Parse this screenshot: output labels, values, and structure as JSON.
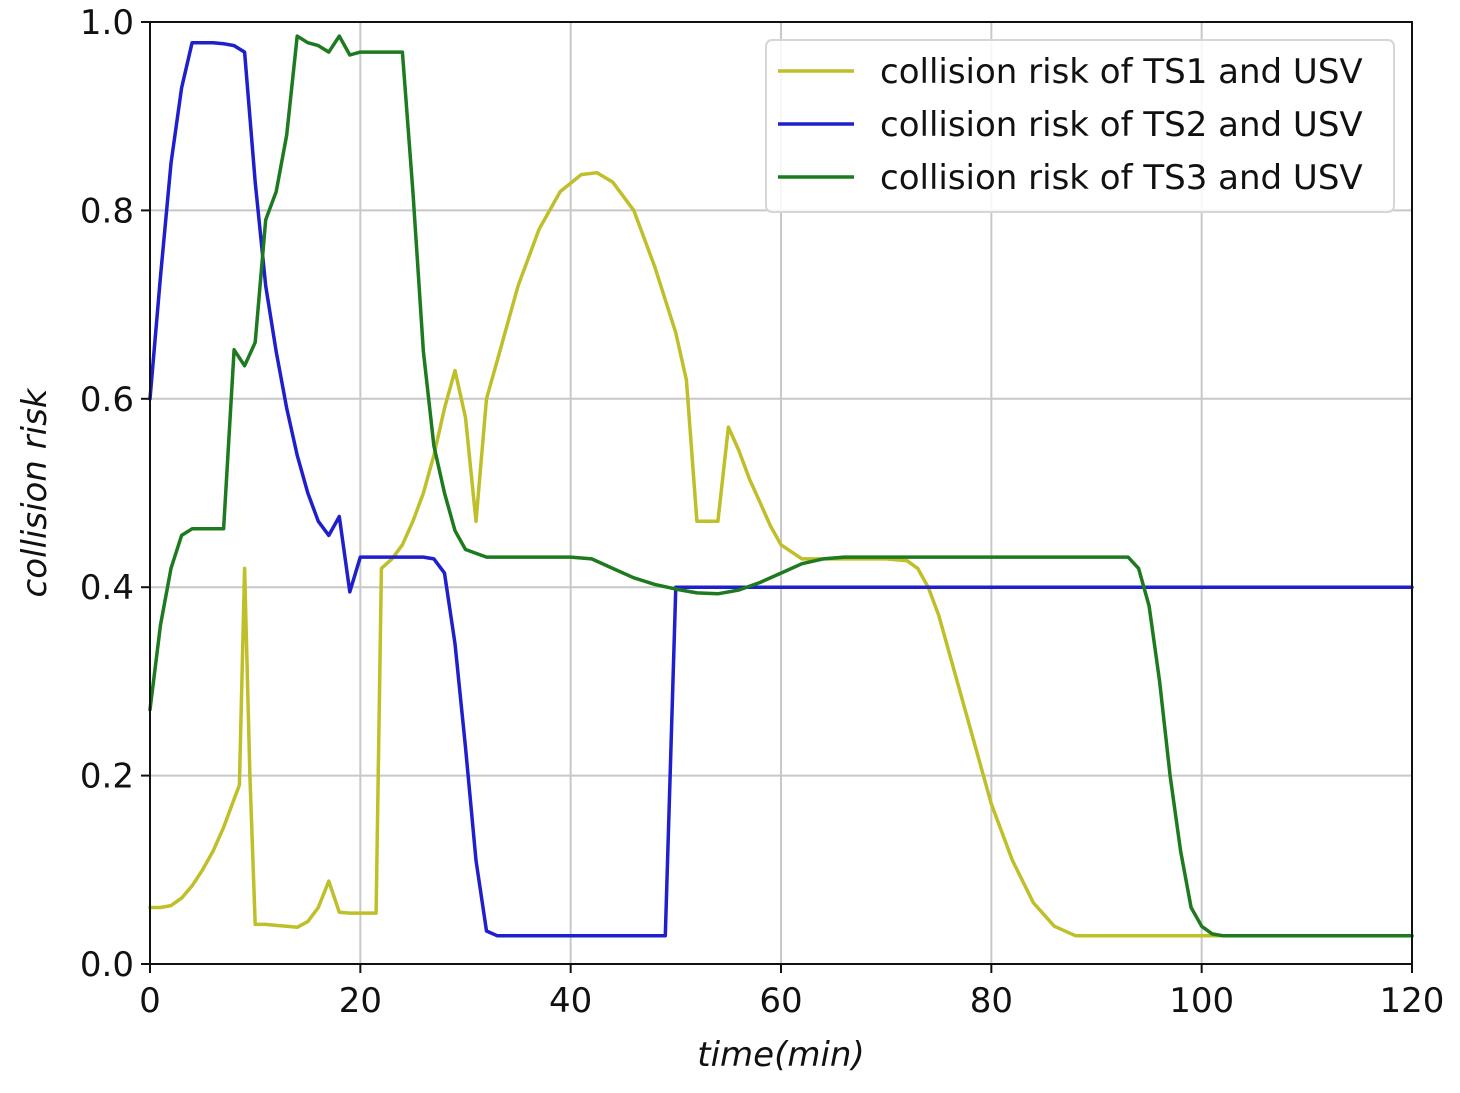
{
  "chart_data": {
    "type": "line",
    "title": "",
    "xlabel": "time(min)",
    "ylabel": "collision risk",
    "xlim": [
      0,
      120
    ],
    "ylim": [
      0,
      1.0
    ],
    "grid": true,
    "legend_position": "top-right",
    "x_ticks": [
      0,
      20,
      40,
      60,
      80,
      100,
      120
    ],
    "x_tick_labels": [
      "0",
      "20",
      "40",
      "60",
      "80",
      "100",
      "120"
    ],
    "y_ticks": [
      0.0,
      0.2,
      0.4,
      0.6,
      0.8,
      1.0
    ],
    "y_tick_labels": [
      "0.0",
      "0.2",
      "0.4",
      "0.6",
      "0.8",
      "1.0"
    ],
    "series": [
      {
        "name": "collision risk of TS1 and USV",
        "color": "#bfbf2a",
        "x": [
          0,
          1,
          2,
          3,
          4,
          5,
          6,
          7,
          8,
          8.5,
          9,
          9.5,
          10,
          11,
          12,
          13,
          14,
          15,
          16,
          17,
          18,
          19,
          20,
          21,
          21.5,
          22,
          23,
          24,
          25,
          26,
          27,
          28,
          29,
          30,
          31,
          32,
          33,
          35,
          37,
          39,
          41,
          42.5,
          44,
          46,
          48,
          50,
          51,
          52,
          53,
          54,
          55,
          56,
          57,
          58,
          59,
          60,
          62,
          64,
          66,
          68,
          70,
          72,
          73,
          74,
          75,
          76,
          78,
          80,
          82,
          84,
          86,
          88,
          89,
          90,
          100,
          120
        ],
        "y": [
          0.06,
          0.06,
          0.062,
          0.07,
          0.083,
          0.1,
          0.12,
          0.145,
          0.175,
          0.19,
          0.42,
          0.2,
          0.042,
          0.042,
          0.041,
          0.04,
          0.039,
          0.045,
          0.06,
          0.088,
          0.055,
          0.054,
          0.054,
          0.054,
          0.054,
          0.42,
          0.43,
          0.445,
          0.47,
          0.5,
          0.54,
          0.59,
          0.63,
          0.58,
          0.47,
          0.6,
          0.64,
          0.72,
          0.78,
          0.82,
          0.838,
          0.84,
          0.83,
          0.8,
          0.74,
          0.67,
          0.62,
          0.47,
          0.47,
          0.47,
          0.57,
          0.545,
          0.515,
          0.49,
          0.465,
          0.445,
          0.43,
          0.43,
          0.43,
          0.43,
          0.43,
          0.428,
          0.42,
          0.4,
          0.37,
          0.33,
          0.25,
          0.17,
          0.11,
          0.065,
          0.04,
          0.03,
          0.03,
          0.03,
          0.03,
          0.03
        ]
      },
      {
        "name": "collision risk of TS2 and USV",
        "color": "#1f1fcc",
        "x": [
          0,
          1,
          2,
          3,
          4,
          5,
          6,
          7,
          8,
          9,
          10,
          11,
          12,
          13,
          14,
          15,
          16,
          17,
          18,
          19,
          20,
          22,
          24,
          26,
          27,
          28,
          29,
          30,
          31,
          32,
          33,
          35,
          40,
          45,
          49,
          50,
          60,
          80,
          100,
          120
        ],
        "y": [
          0.6,
          0.73,
          0.85,
          0.93,
          0.978,
          0.978,
          0.978,
          0.977,
          0.975,
          0.968,
          0.83,
          0.72,
          0.65,
          0.59,
          0.54,
          0.5,
          0.47,
          0.455,
          0.475,
          0.395,
          0.432,
          0.432,
          0.432,
          0.432,
          0.43,
          0.415,
          0.34,
          0.23,
          0.11,
          0.035,
          0.03,
          0.03,
          0.03,
          0.03,
          0.03,
          0.4,
          0.4,
          0.4,
          0.4,
          0.4
        ]
      },
      {
        "name": "collision risk of TS3 and USV",
        "color": "#1e7a1e",
        "x": [
          0,
          1,
          2,
          3,
          4,
          5,
          6,
          7,
          8,
          9,
          10,
          11,
          12,
          13,
          14,
          15,
          16,
          17,
          18,
          19,
          20,
          22,
          24,
          25,
          26,
          27,
          28,
          29,
          30,
          32,
          35,
          40,
          42,
          44,
          46,
          48,
          50,
          52,
          54,
          56,
          58,
          60,
          62,
          64,
          66,
          70,
          80,
          90,
          93,
          94,
          95,
          96,
          97,
          98,
          99,
          100,
          101,
          102,
          103,
          110,
          120
        ],
        "y": [
          0.27,
          0.36,
          0.42,
          0.455,
          0.462,
          0.462,
          0.462,
          0.462,
          0.652,
          0.635,
          0.66,
          0.79,
          0.82,
          0.88,
          0.985,
          0.978,
          0.975,
          0.968,
          0.985,
          0.965,
          0.968,
          0.968,
          0.968,
          0.82,
          0.65,
          0.55,
          0.5,
          0.46,
          0.44,
          0.432,
          0.432,
          0.432,
          0.43,
          0.42,
          0.41,
          0.403,
          0.398,
          0.394,
          0.393,
          0.397,
          0.405,
          0.415,
          0.425,
          0.43,
          0.432,
          0.432,
          0.432,
          0.432,
          0.432,
          0.42,
          0.38,
          0.3,
          0.2,
          0.12,
          0.06,
          0.04,
          0.032,
          0.03,
          0.03,
          0.03,
          0.03
        ]
      }
    ]
  }
}
